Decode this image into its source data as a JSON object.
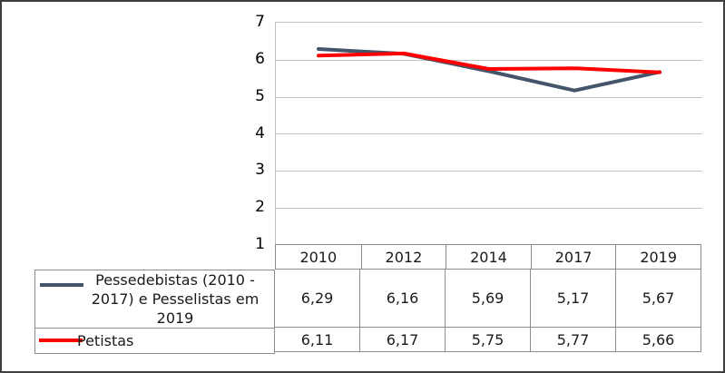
{
  "chart_data": {
    "type": "line",
    "categories": [
      "2010",
      "2012",
      "2014",
      "2017",
      "2019"
    ],
    "series": [
      {
        "name": "Pessedebistas (2010 - 2017) e Pesselistas em 2019",
        "values": [
          6.29,
          6.16,
          5.69,
          5.17,
          5.67
        ],
        "values_display": [
          "6,29",
          "6,16",
          "5,69",
          "5,17",
          "5,67"
        ],
        "color": "#44546A"
      },
      {
        "name": "Petistas",
        "values": [
          6.11,
          6.17,
          5.75,
          5.77,
          5.66
        ],
        "values_display": [
          "6,11",
          "6,17",
          "5,75",
          "5,77",
          "5,66"
        ],
        "color": "#FF0000"
      }
    ],
    "title": "",
    "xlabel": "",
    "ylabel": "",
    "ylim": [
      1,
      7
    ],
    "yticks": [
      "7",
      "6",
      "5",
      "4",
      "3",
      "2",
      "1"
    ],
    "grid": "horizontal-major",
    "legend_position": "data-table-below-left",
    "number_format": "decimal-comma"
  },
  "colors": {
    "gridline": "#c0c0c0",
    "table_border": "#8c8c8c",
    "outer_border": "#3f3f3f",
    "series_1": "#44546A",
    "series_2": "#FF0000"
  }
}
